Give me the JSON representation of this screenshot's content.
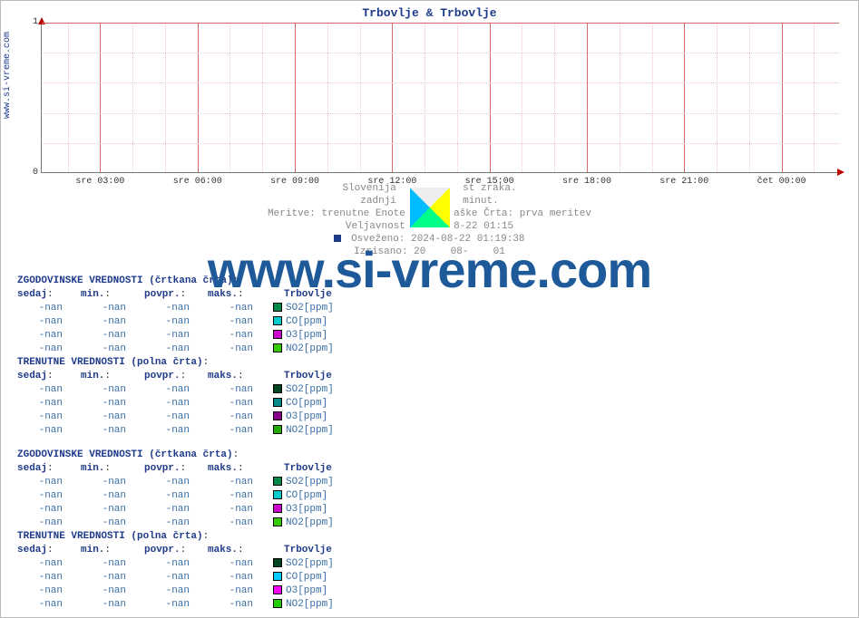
{
  "site_label": "www.si-vreme.com",
  "watermark": "www.si-vreme.com",
  "chart": {
    "title": "Trbovlje & Trbovlje",
    "type": "line",
    "series_count": 0,
    "ylim": [
      0,
      1
    ],
    "yticks": [
      0,
      1
    ],
    "y_major_step": 1,
    "xticks": [
      "sre 03:00",
      "sre 06:00",
      "sre 09:00",
      "sre 12:00",
      "sre 15:00",
      "sre 18:00",
      "sre 21:00",
      "čet 00:00"
    ],
    "x_major_every": 3,
    "x_minor_per_major": 3,
    "vgrid_major_color": "#d46a6a",
    "vgrid_minor_color": "#f0c4c4",
    "hgrid_major_color": "#d46a6a",
    "hgrid_minor_color": "#f0c4c4",
    "axis_color": "#777777",
    "arrow_color": "#b00000",
    "chart_bg": "#ffffff",
    "title_color": "#1e3a8a",
    "title_fontsize": 13,
    "tick_fontsize": 10
  },
  "meta": {
    "line1_a": "Slovenija",
    "line1_b": "st zraka.",
    "line2_a": "zadnji",
    "line2_b": "minut.",
    "line3": "Meritve: trenutne  Enote",
    "line3_mid": "aške  Črta: prva meritev",
    "line4_a": "Veljavnost",
    "line4_b": "8-22 01:15",
    "line5": "Osveženo: 2024-08-22 01:19:38",
    "line6_a": "Izrisano: 20",
    "line6_b": "08-",
    "line6_c": "01",
    "marker_color": "#1e3a8a",
    "text_color": "#888888"
  },
  "columns": [
    "sedaj",
    "min.",
    "povpr.",
    "maks."
  ],
  "blocks": [
    {
      "title": "ZGODOVINSKE VREDNOSTI (črtkana črta)",
      "location": "Trbovlje",
      "rows": [
        {
          "vals": [
            "-nan",
            "-nan",
            "-nan",
            "-nan"
          ],
          "color": "#008844",
          "param": "SO2[ppm]"
        },
        {
          "vals": [
            "-nan",
            "-nan",
            "-nan",
            "-nan"
          ],
          "color": "#00cccc",
          "param": "CO[ppm]"
        },
        {
          "vals": [
            "-nan",
            "-nan",
            "-nan",
            "-nan"
          ],
          "color": "#cc00cc",
          "param": "O3[ppm]"
        },
        {
          "vals": [
            "-nan",
            "-nan",
            "-nan",
            "-nan"
          ],
          "color": "#33cc00",
          "param": "NO2[ppm]"
        }
      ]
    },
    {
      "title": "TRENUTNE VREDNOSTI (polna črta)",
      "location": "Trbovlje",
      "rows": [
        {
          "vals": [
            "-nan",
            "-nan",
            "-nan",
            "-nan"
          ],
          "color": "#004422",
          "param": "SO2[ppm]"
        },
        {
          "vals": [
            "-nan",
            "-nan",
            "-nan",
            "-nan"
          ],
          "color": "#008888",
          "param": "CO[ppm]"
        },
        {
          "vals": [
            "-nan",
            "-nan",
            "-nan",
            "-nan"
          ],
          "color": "#880088",
          "param": "O3[ppm]"
        },
        {
          "vals": [
            "-nan",
            "-nan",
            "-nan",
            "-nan"
          ],
          "color": "#22aa00",
          "param": "NO2[ppm]"
        }
      ]
    },
    {
      "title": "ZGODOVINSKE VREDNOSTI (črtkana črta)",
      "location": "Trbovlje",
      "rows": [
        {
          "vals": [
            "-nan",
            "-nan",
            "-nan",
            "-nan"
          ],
          "color": "#008844",
          "param": "SO2[ppm]"
        },
        {
          "vals": [
            "-nan",
            "-nan",
            "-nan",
            "-nan"
          ],
          "color": "#00cccc",
          "param": "CO[ppm]"
        },
        {
          "vals": [
            "-nan",
            "-nan",
            "-nan",
            "-nan"
          ],
          "color": "#cc00cc",
          "param": "O3[ppm]"
        },
        {
          "vals": [
            "-nan",
            "-nan",
            "-nan",
            "-nan"
          ],
          "color": "#33cc00",
          "param": "NO2[ppm]"
        }
      ]
    },
    {
      "title": "TRENUTNE VREDNOSTI (polna črta)",
      "location": "Trbovlje",
      "rows": [
        {
          "vals": [
            "-nan",
            "-nan",
            "-nan",
            "-nan"
          ],
          "color": "#004422",
          "param": "SO2[ppm]"
        },
        {
          "vals": [
            "-nan",
            "-nan",
            "-nan",
            "-nan"
          ],
          "color": "#00ccff",
          "param": "CO[ppm]"
        },
        {
          "vals": [
            "-nan",
            "-nan",
            "-nan",
            "-nan"
          ],
          "color": "#ff00ff",
          "param": "O3[ppm]"
        },
        {
          "vals": [
            "-nan",
            "-nan",
            "-nan",
            "-nan"
          ],
          "color": "#22cc00",
          "param": "NO2[ppm]"
        }
      ]
    }
  ]
}
